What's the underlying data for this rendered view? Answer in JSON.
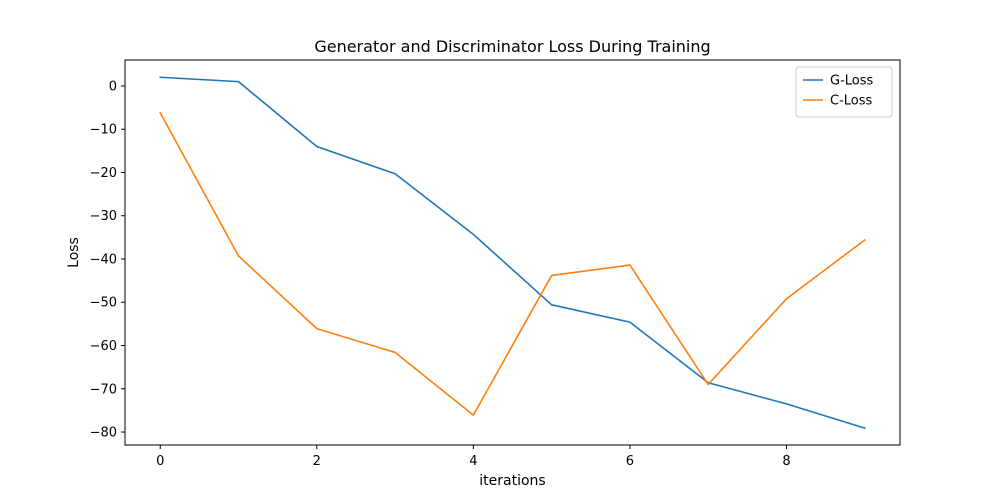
{
  "chart_data": {
    "type": "line",
    "title": "Generator and Discriminator Loss During Training",
    "xlabel": "iterations",
    "ylabel": "Loss",
    "x": [
      0,
      1,
      2,
      3,
      4,
      5,
      6,
      7,
      8,
      9
    ],
    "xlim": [
      -0.45,
      9.45
    ],
    "ylim": [
      -83,
      6
    ],
    "xticks": [
      0,
      2,
      4,
      6,
      8
    ],
    "yticks": [
      0,
      -10,
      -20,
      -30,
      -40,
      -50,
      -60,
      -70,
      -80
    ],
    "grid": false,
    "legend_position": "top-right",
    "series": [
      {
        "name": "G-Loss",
        "color": "#1f77b4",
        "values": [
          2.0,
          1.0,
          -14.0,
          -20.3,
          -34.3,
          -50.6,
          -54.6,
          -68.6,
          -73.5,
          -79.1
        ]
      },
      {
        "name": "C-Loss",
        "color": "#ff7f0e",
        "values": [
          -6.2,
          -39.3,
          -56.1,
          -61.6,
          -76.1,
          -43.8,
          -41.4,
          -69.0,
          -49.2,
          -35.6
        ]
      }
    ]
  }
}
